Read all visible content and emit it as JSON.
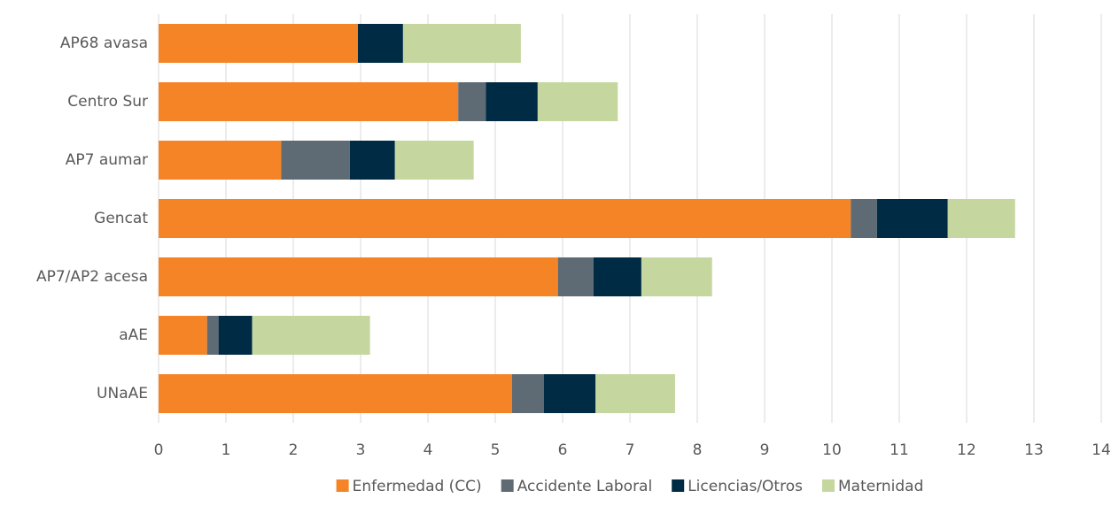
{
  "chart_data": {
    "type": "stacked-barh",
    "categories": [
      "AP68 avasa",
      "Centro Sur",
      "AP7 aumar",
      "Gencat",
      "AP7/AP2 acesa",
      "aAE",
      "UNaAE"
    ],
    "series": [
      {
        "name": "Enfermedad (CC)",
        "color": "#f58426",
        "values": [
          2.96,
          4.45,
          1.82,
          10.28,
          5.93,
          0.72,
          5.25
        ]
      },
      {
        "name": "Accidente Laboral",
        "color": "#5f6b74",
        "values": [
          0,
          0.41,
          1.02,
          0.39,
          0.53,
          0.17,
          0.47
        ]
      },
      {
        "name": "Licencias/Otros",
        "color": "#002b45",
        "values": [
          0.67,
          0.77,
          0.67,
          1.05,
          0.71,
          0.5,
          0.77
        ]
      },
      {
        "name": "Maternidad",
        "color": "#c5d79f",
        "values": [
          1.75,
          1.19,
          1.17,
          1.0,
          1.05,
          1.75,
          1.18
        ]
      }
    ],
    "xlim": [
      0,
      14
    ],
    "xticks": [
      0,
      1,
      2,
      3,
      4,
      5,
      6,
      7,
      8,
      9,
      10,
      11,
      12,
      13,
      14
    ],
    "grid": true,
    "legend": "bottom"
  }
}
